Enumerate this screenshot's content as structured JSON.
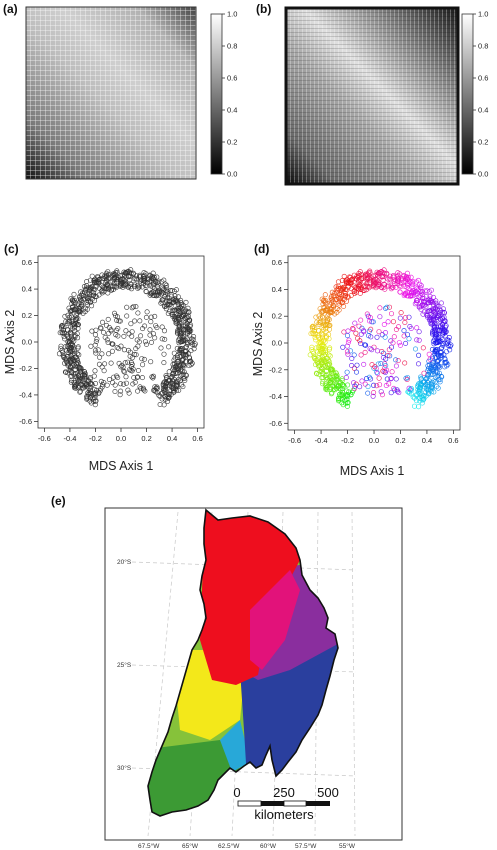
{
  "panels": {
    "a": {
      "label": "(a)"
    },
    "b": {
      "label": "(b)"
    },
    "c": {
      "label": "(c)"
    },
    "d": {
      "label": "(d)"
    },
    "e": {
      "label": "(e)"
    }
  },
  "colorbar": {
    "ticks": [
      "1.0",
      "0.8",
      "0.6",
      "0.4",
      "0.2",
      "0.0"
    ],
    "values": [
      1.0,
      0.8,
      0.6,
      0.4,
      0.2,
      0.0
    ]
  },
  "chart_data": [
    {
      "type": "heatmap",
      "panel": "a",
      "colorscale": "grayscale",
      "zlim": [
        0.0,
        1.0
      ]
    },
    {
      "type": "heatmap",
      "panel": "b",
      "colorscale": "grayscale",
      "zlim": [
        0.0,
        1.0
      ]
    },
    {
      "type": "scatter",
      "panel": "c",
      "xlabel": "MDS Axis 1",
      "ylabel": "MDS Axis 2",
      "xlim": [
        -0.65,
        0.65
      ],
      "ylim": [
        -0.65,
        0.65
      ],
      "xticks": [
        "-0.6",
        "-0.4",
        "-0.2",
        "0.0",
        "0.2",
        "0.4",
        "0.6"
      ],
      "yticks": [
        "-0.6",
        "-0.4",
        "-0.2",
        "0.0",
        "0.2",
        "0.4",
        "0.6"
      ],
      "point_color": "#333333"
    },
    {
      "type": "scatter",
      "panel": "d",
      "xlabel": "MDS Axis 1",
      "ylabel": "MDS Axis 2",
      "xlim": [
        -0.65,
        0.65
      ],
      "ylim": [
        -0.65,
        0.65
      ],
      "xticks": [
        "-0.6",
        "-0.4",
        "-0.2",
        "0.0",
        "0.2",
        "0.4",
        "0.6"
      ],
      "yticks": [
        "-0.6",
        "-0.4",
        "-0.2",
        "0.0",
        "0.2",
        "0.4",
        "0.6"
      ],
      "point_color": "hue-by-angle"
    }
  ],
  "map": {
    "lat_labels": [
      "20°S",
      "25°S",
      "30°S"
    ],
    "lon_labels": [
      "67.5°W",
      "65°W",
      "62.5°W",
      "60°W",
      "57.5°W",
      "55°W"
    ],
    "scalebar": {
      "ticks": [
        "0",
        "250",
        "500"
      ],
      "unit": "kilometers"
    },
    "colors": {
      "red": "#ee0e1e",
      "magenta": "#e2127a",
      "purple": "#8a2e9e",
      "blue": "#2a3f9e",
      "cyan": "#28a8d8",
      "yellow": "#f3e81a",
      "green": "#86c23a",
      "darkgreen": "#3c9a34"
    }
  }
}
